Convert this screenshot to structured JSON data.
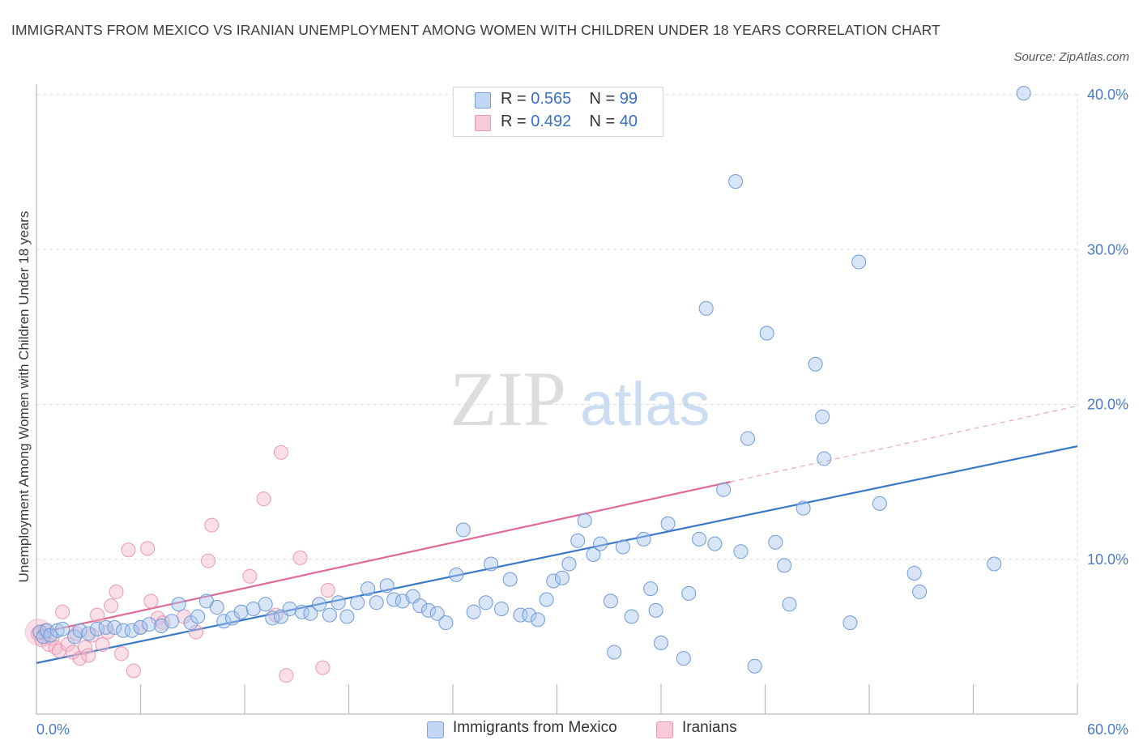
{
  "title": "IMMIGRANTS FROM MEXICO VS IRANIAN UNEMPLOYMENT AMONG WOMEN WITH CHILDREN UNDER 18 YEARS CORRELATION CHART",
  "source": "Source: ZipAtlas.com",
  "watermark": {
    "zip": "ZIP",
    "atlas": "atlas"
  },
  "legend": {
    "rows": [
      {
        "r_label": "R = ",
        "r_value": "0.565",
        "n_label": "N = ",
        "n_value": "99"
      },
      {
        "r_label": "R = ",
        "r_value": "0.492",
        "n_label": "N = ",
        "n_value": "40"
      }
    ]
  },
  "bottom_legend": [
    "Immigrants from Mexico",
    "Iranians"
  ],
  "chart_data": {
    "type": "scatter",
    "title": "IMMIGRANTS FROM MEXICO VS IRANIAN UNEMPLOYMENT AMONG WOMEN WITH CHILDREN UNDER 18 YEARS CORRELATION CHART",
    "xlabel": "",
    "ylabel": "Unemployment Among Women with Children Under 18 years",
    "xlim": [
      0,
      60
    ],
    "ylim": [
      0,
      40
    ],
    "x_tick_labels": [
      "0.0%",
      "60.0%"
    ],
    "y_ticks": [
      10,
      20,
      30,
      40
    ],
    "y_tick_labels": [
      "10.0%",
      "20.0%",
      "30.0%",
      "40.0%"
    ],
    "grid": true,
    "legend_position": "top-center",
    "colors": {
      "mexico": "#a9c6ee",
      "mexico_line": "#3a78c9",
      "iranians": "#f5b8cc",
      "iranians_line": "#e06a95"
    },
    "series": [
      {
        "name": "Immigrants from Mexico",
        "R": 0.565,
        "N": 99,
        "trend": {
          "x": [
            0,
            60
          ],
          "y": [
            3.3,
            17.3
          ]
        },
        "points": [
          [
            0.2,
            5.3
          ],
          [
            0.4,
            5.0
          ],
          [
            0.6,
            5.4
          ],
          [
            0.8,
            5.1
          ],
          [
            1.2,
            5.4
          ],
          [
            1.5,
            5.5
          ],
          [
            2.2,
            5.0
          ],
          [
            2.5,
            5.4
          ],
          [
            3.0,
            5.2
          ],
          [
            3.5,
            5.5
          ],
          [
            4.0,
            5.6
          ],
          [
            4.5,
            5.6
          ],
          [
            5.0,
            5.4
          ],
          [
            5.5,
            5.4
          ],
          [
            6.0,
            5.6
          ],
          [
            6.5,
            5.8
          ],
          [
            7.2,
            5.7
          ],
          [
            7.8,
            6.0
          ],
          [
            8.2,
            7.1
          ],
          [
            8.9,
            5.9
          ],
          [
            9.3,
            6.3
          ],
          [
            9.8,
            7.3
          ],
          [
            10.4,
            6.9
          ],
          [
            10.8,
            6.0
          ],
          [
            11.3,
            6.2
          ],
          [
            11.8,
            6.6
          ],
          [
            12.5,
            6.8
          ],
          [
            13.2,
            7.1
          ],
          [
            13.6,
            6.2
          ],
          [
            14.1,
            6.3
          ],
          [
            14.6,
            6.8
          ],
          [
            15.3,
            6.6
          ],
          [
            15.8,
            6.5
          ],
          [
            16.3,
            7.1
          ],
          [
            16.9,
            6.4
          ],
          [
            17.4,
            7.2
          ],
          [
            17.9,
            6.3
          ],
          [
            18.5,
            7.2
          ],
          [
            19.1,
            8.1
          ],
          [
            19.6,
            7.2
          ],
          [
            20.2,
            8.3
          ],
          [
            20.6,
            7.4
          ],
          [
            21.1,
            7.3
          ],
          [
            21.7,
            7.6
          ],
          [
            22.1,
            7.0
          ],
          [
            22.6,
            6.7
          ],
          [
            23.1,
            6.5
          ],
          [
            23.6,
            5.9
          ],
          [
            24.2,
            9.0
          ],
          [
            24.6,
            11.9
          ],
          [
            25.2,
            6.6
          ],
          [
            25.9,
            7.2
          ],
          [
            26.2,
            9.7
          ],
          [
            26.8,
            6.8
          ],
          [
            27.3,
            8.7
          ],
          [
            27.9,
            6.4
          ],
          [
            28.4,
            6.4
          ],
          [
            28.9,
            6.1
          ],
          [
            29.4,
            7.4
          ],
          [
            29.8,
            8.6
          ],
          [
            30.3,
            8.8
          ],
          [
            30.7,
            9.7
          ],
          [
            31.2,
            11.2
          ],
          [
            31.6,
            12.5
          ],
          [
            32.1,
            10.3
          ],
          [
            32.5,
            11.0
          ],
          [
            33.1,
            7.3
          ],
          [
            33.3,
            4.0
          ],
          [
            33.8,
            10.8
          ],
          [
            34.3,
            6.3
          ],
          [
            35.0,
            11.3
          ],
          [
            35.4,
            8.1
          ],
          [
            35.7,
            6.7
          ],
          [
            36.0,
            4.6
          ],
          [
            36.4,
            12.3
          ],
          [
            37.3,
            3.6
          ],
          [
            37.6,
            7.8
          ],
          [
            38.2,
            11.3
          ],
          [
            38.6,
            26.2
          ],
          [
            39.1,
            11.0
          ],
          [
            39.6,
            14.5
          ],
          [
            40.3,
            34.4
          ],
          [
            40.6,
            10.5
          ],
          [
            41.0,
            17.8
          ],
          [
            41.4,
            3.1
          ],
          [
            42.1,
            24.6
          ],
          [
            42.6,
            11.1
          ],
          [
            43.1,
            9.6
          ],
          [
            43.4,
            7.1
          ],
          [
            44.2,
            13.3
          ],
          [
            44.9,
            22.6
          ],
          [
            45.3,
            19.2
          ],
          [
            45.4,
            16.5
          ],
          [
            46.9,
            5.9
          ],
          [
            47.4,
            29.2
          ],
          [
            48.6,
            13.6
          ],
          [
            50.6,
            9.1
          ],
          [
            50.9,
            7.9
          ],
          [
            55.2,
            9.7
          ],
          [
            56.9,
            40.1
          ]
        ]
      },
      {
        "name": "Iranians",
        "R": 0.492,
        "N": 40,
        "trend": {
          "x": [
            0,
            40
          ],
          "y": [
            5.2,
            15.0
          ]
        },
        "trend_extension": {
          "x": [
            40,
            60
          ],
          "y": [
            15.0,
            19.9
          ]
        },
        "points": [
          [
            0.1,
            5.2
          ],
          [
            0.3,
            4.8
          ],
          [
            0.5,
            5.4
          ],
          [
            0.7,
            4.5
          ],
          [
            0.9,
            4.9
          ],
          [
            1.1,
            4.3
          ],
          [
            1.3,
            4.1
          ],
          [
            1.5,
            6.6
          ],
          [
            1.8,
            4.5
          ],
          [
            2.1,
            4.0
          ],
          [
            2.3,
            5.2
          ],
          [
            2.5,
            3.6
          ],
          [
            2.8,
            4.3
          ],
          [
            3.0,
            3.8
          ],
          [
            3.2,
            5.1
          ],
          [
            3.5,
            6.4
          ],
          [
            3.8,
            4.5
          ],
          [
            4.1,
            5.3
          ],
          [
            4.3,
            7.0
          ],
          [
            4.6,
            7.9
          ],
          [
            4.9,
            3.9
          ],
          [
            5.3,
            10.6
          ],
          [
            5.6,
            2.8
          ],
          [
            6.0,
            5.6
          ],
          [
            6.4,
            10.7
          ],
          [
            6.6,
            7.3
          ],
          [
            7.0,
            6.2
          ],
          [
            7.3,
            5.9
          ],
          [
            8.5,
            6.3
          ],
          [
            9.2,
            5.3
          ],
          [
            9.9,
            9.9
          ],
          [
            10.1,
            12.2
          ],
          [
            12.3,
            8.9
          ],
          [
            13.1,
            13.9
          ],
          [
            13.8,
            6.4
          ],
          [
            14.1,
            16.9
          ],
          [
            14.4,
            2.5
          ],
          [
            15.2,
            10.1
          ],
          [
            16.5,
            3.0
          ],
          [
            16.8,
            8.0
          ]
        ]
      }
    ]
  }
}
